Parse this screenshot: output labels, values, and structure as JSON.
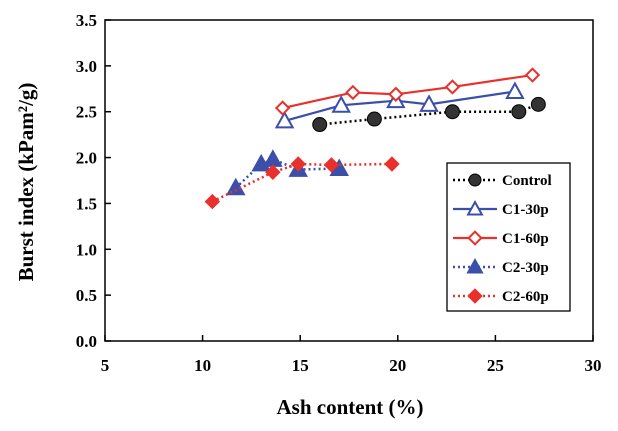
{
  "chart_data": {
    "type": "line",
    "title": "",
    "xlabel": "Ash content (%)",
    "ylabel": "Burst index (kPam²/g)",
    "xlim": [
      5,
      30
    ],
    "ylim": [
      0.0,
      3.5
    ],
    "xticks": [
      "5",
      "10",
      "15",
      "20",
      "25",
      "30"
    ],
    "yticks": [
      "0.0",
      "0.5",
      "1.0",
      "1.5",
      "2.0",
      "2.5",
      "3.0",
      "3.5"
    ],
    "grid": false,
    "legend_position": "right",
    "series": [
      {
        "name": "Control",
        "color": "#000000",
        "marker": "circle",
        "line": "dotted",
        "x": [
          16.0,
          18.8,
          22.8,
          26.2,
          27.2
        ],
        "y": [
          2.36,
          2.42,
          2.5,
          2.5,
          2.58
        ]
      },
      {
        "name": "C1-30p",
        "color": "#3b4fa8",
        "marker": "triangle-open",
        "line": "solid",
        "x": [
          14.2,
          17.1,
          19.9,
          21.6,
          26.0
        ],
        "y": [
          2.4,
          2.57,
          2.62,
          2.58,
          2.72
        ]
      },
      {
        "name": "C1-60p",
        "color": "#e8302d",
        "marker": "diamond-open",
        "line": "solid",
        "x": [
          14.1,
          17.7,
          19.9,
          22.8,
          26.9
        ],
        "y": [
          2.54,
          2.71,
          2.69,
          2.77,
          2.9
        ]
      },
      {
        "name": "C2-30p",
        "color": "#3b4fa8",
        "marker": "triangle",
        "line": "dotted",
        "x": [
          11.7,
          13.0,
          13.6,
          14.9,
          17.0
        ],
        "y": [
          1.67,
          1.93,
          1.98,
          1.87,
          1.88
        ]
      },
      {
        "name": "C2-60p",
        "color": "#e8302d",
        "marker": "diamond",
        "line": "dotted",
        "x": [
          10.5,
          13.6,
          14.9,
          16.6,
          19.7
        ],
        "y": [
          1.52,
          1.84,
          1.93,
          1.92,
          1.93
        ]
      }
    ]
  }
}
